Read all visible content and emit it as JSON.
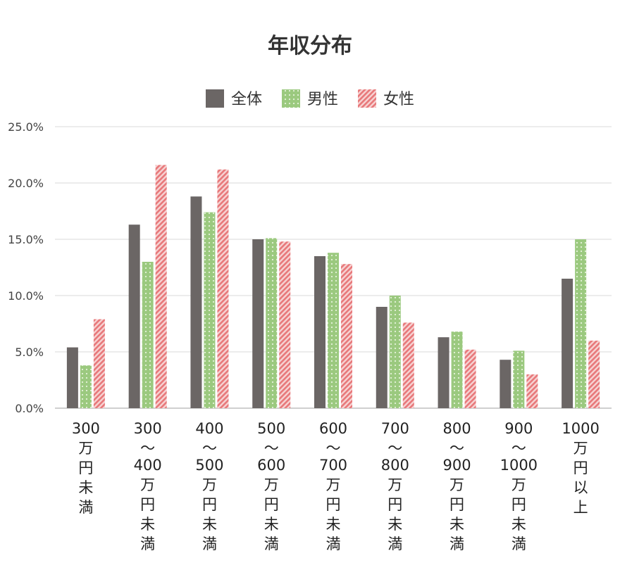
{
  "chart_data": {
    "type": "bar",
    "title": "年収分布",
    "categories": [
      [
        "300",
        "万",
        "円",
        "未",
        "満"
      ],
      [
        "300",
        "〜",
        "400",
        "万",
        "円",
        "未",
        "満"
      ],
      [
        "400",
        "〜",
        "500",
        "万",
        "円",
        "未",
        "満"
      ],
      [
        "500",
        "〜",
        "600",
        "万",
        "円",
        "未",
        "満"
      ],
      [
        "600",
        "〜",
        "700",
        "万",
        "円",
        "未",
        "満"
      ],
      [
        "700",
        "〜",
        "800",
        "万",
        "円",
        "未",
        "満"
      ],
      [
        "800",
        "〜",
        "900",
        "万",
        "円",
        "未",
        "満"
      ],
      [
        "900",
        "〜",
        "1000",
        "万",
        "円",
        "未",
        "満"
      ],
      [
        "1000",
        "万",
        "円",
        "以",
        "上"
      ]
    ],
    "series": [
      {
        "name": "全体",
        "color": "#6b6665",
        "pattern": "solid",
        "values": [
          5.4,
          16.3,
          18.8,
          15.0,
          13.5,
          9.0,
          6.3,
          4.3,
          11.5
        ]
      },
      {
        "name": "男性",
        "color": "#9bc97f",
        "pattern": "dots",
        "values": [
          3.8,
          13.0,
          17.4,
          15.1,
          13.8,
          10.0,
          6.8,
          5.1,
          15.0
        ]
      },
      {
        "name": "女性",
        "color": "#e8787a",
        "pattern": "diagonal-stripes",
        "values": [
          7.9,
          21.6,
          21.2,
          14.8,
          12.8,
          7.6,
          5.2,
          3.0,
          6.0
        ]
      }
    ],
    "ylim": [
      0,
      25
    ],
    "yticks": [
      "0.0%",
      "5.0%",
      "10.0%",
      "15.0%",
      "20.0%",
      "25.0%"
    ],
    "grid": true,
    "legend": "top-center"
  }
}
